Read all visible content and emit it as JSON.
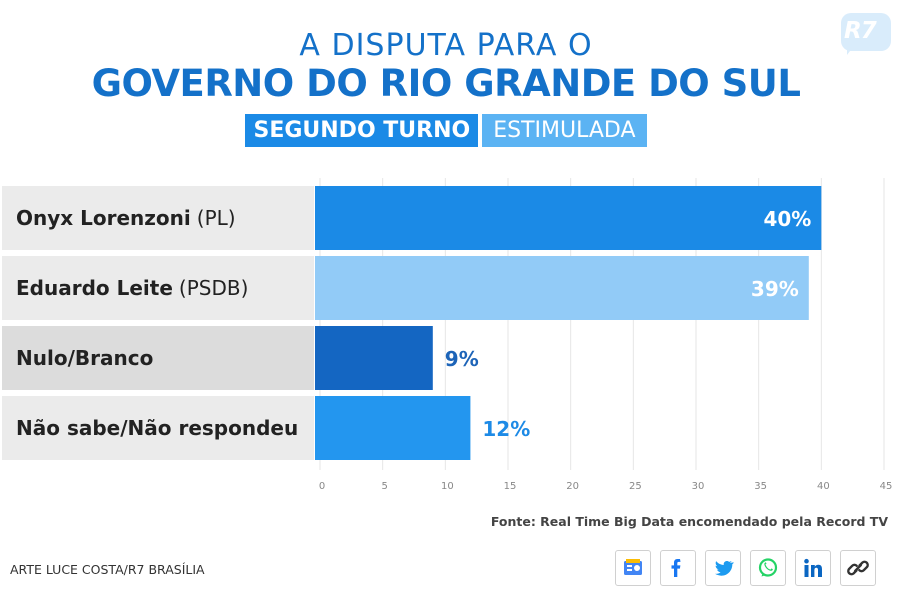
{
  "title": {
    "line1": "A DISPUTA PARA O",
    "line2": "GOVERNO DO RIO GRANDE DO SUL",
    "round_badge": "SEGUNDO TURNO",
    "type_badge": "ESTIMULADA"
  },
  "logo": {
    "text": "R7"
  },
  "chart_data": {
    "type": "bar",
    "orientation": "horizontal",
    "title": "A DISPUTA PARA O GOVERNO DO RIO GRANDE DO SUL",
    "subtitle": "SEGUNDO TURNO ESTIMULADA",
    "categories": [
      {
        "name": "Onyx Lorenzoni",
        "party": "(PL)"
      },
      {
        "name": "Eduardo Leite",
        "party": "(PSDB)"
      },
      {
        "name": "Nulo/Branco",
        "party": ""
      },
      {
        "name": "Não sabe/Não respondeu",
        "party": ""
      }
    ],
    "values": [
      40,
      39,
      9,
      12
    ],
    "value_labels": [
      "40%",
      "39%",
      "9%",
      "12%"
    ],
    "bar_colors": [
      "#1b8ae6",
      "#92cbf7",
      "#1466c2",
      "#2396ef"
    ],
    "label_colors": [
      "#ffffff",
      "#ffffff",
      "#1d64b8",
      "#1d8ae6"
    ],
    "xlim": [
      0,
      45
    ],
    "xticks": [
      "0",
      "5",
      "10",
      "15",
      "20",
      "25",
      "30",
      "35",
      "40",
      "45"
    ],
    "xlabel": "",
    "ylabel": "",
    "grid": true
  },
  "footer": {
    "source": "Fonte: Real Time Big Data encomendado pela Record TV",
    "credit": "ARTE LUCE COSTA/R7 BRASÍLIA"
  },
  "share": {
    "buttons": [
      {
        "name": "google-news-icon",
        "color": "#4285f4"
      },
      {
        "name": "facebook-icon",
        "color": "#1877f2"
      },
      {
        "name": "twitter-icon",
        "color": "#1d9bf0"
      },
      {
        "name": "whatsapp-icon",
        "color": "#25d366"
      },
      {
        "name": "linkedin-icon",
        "color": "#0a66c2"
      },
      {
        "name": "link-icon",
        "color": "#333333"
      }
    ]
  }
}
